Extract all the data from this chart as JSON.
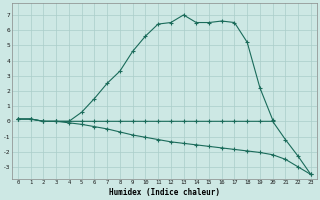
{
  "xlabel": "Humidex (Indice chaleur)",
  "x": [
    0,
    1,
    2,
    3,
    4,
    5,
    6,
    7,
    8,
    9,
    10,
    11,
    12,
    13,
    14,
    15,
    16,
    17,
    18,
    19,
    20,
    21,
    22,
    23
  ],
  "line1_x": [
    0,
    1,
    2,
    3,
    4,
    5,
    6,
    7,
    8,
    9,
    10,
    11,
    12,
    13,
    14,
    15,
    16,
    17,
    18,
    19,
    20
  ],
  "line1_y": [
    0.15,
    0.15,
    0.0,
    0.0,
    0.0,
    0.6,
    1.5,
    2.5,
    3.3,
    4.6,
    5.6,
    6.4,
    6.5,
    7.0,
    6.5,
    6.5,
    6.6,
    6.5,
    5.2,
    2.2,
    0.1
  ],
  "line2_x": [
    0,
    1,
    2,
    3,
    4,
    5,
    6,
    7,
    8,
    9,
    10,
    11,
    12,
    13,
    14,
    15,
    16,
    17,
    18,
    19,
    20,
    21,
    22,
    23
  ],
  "line2_y": [
    0.15,
    0.15,
    0.0,
    0.0,
    0.0,
    0.0,
    0.0,
    0.0,
    0.0,
    0.0,
    0.0,
    0.0,
    0.0,
    0.0,
    0.0,
    0.0,
    0.0,
    0.0,
    0.0,
    0.0,
    0.0,
    -1.2,
    -2.3,
    -3.5
  ],
  "line3_x": [
    0,
    1,
    2,
    3,
    4,
    5,
    6,
    7,
    8,
    9,
    10,
    11,
    12,
    13,
    14,
    15,
    16,
    17,
    18,
    19,
    20,
    21,
    22,
    23
  ],
  "line3_y": [
    0.15,
    0.15,
    0.0,
    0.0,
    -0.1,
    -0.2,
    -0.35,
    -0.5,
    -0.7,
    -0.9,
    -1.05,
    -1.2,
    -1.35,
    -1.45,
    -1.55,
    -1.65,
    -1.75,
    -1.85,
    -1.95,
    -2.05,
    -2.2,
    -2.5,
    -3.0,
    -3.5
  ],
  "line_color": "#1a6b5a",
  "bg_color": "#cde8e4",
  "grid_color": "#aacec9",
  "ylim": [
    -3.8,
    7.8
  ],
  "xlim": [
    -0.5,
    23.5
  ],
  "yticks": [
    -3,
    -2,
    -1,
    0,
    1,
    2,
    3,
    4,
    5,
    6,
    7
  ],
  "xticks": [
    0,
    1,
    2,
    3,
    4,
    5,
    6,
    7,
    8,
    9,
    10,
    11,
    12,
    13,
    14,
    15,
    16,
    17,
    18,
    19,
    20,
    21,
    22,
    23
  ]
}
